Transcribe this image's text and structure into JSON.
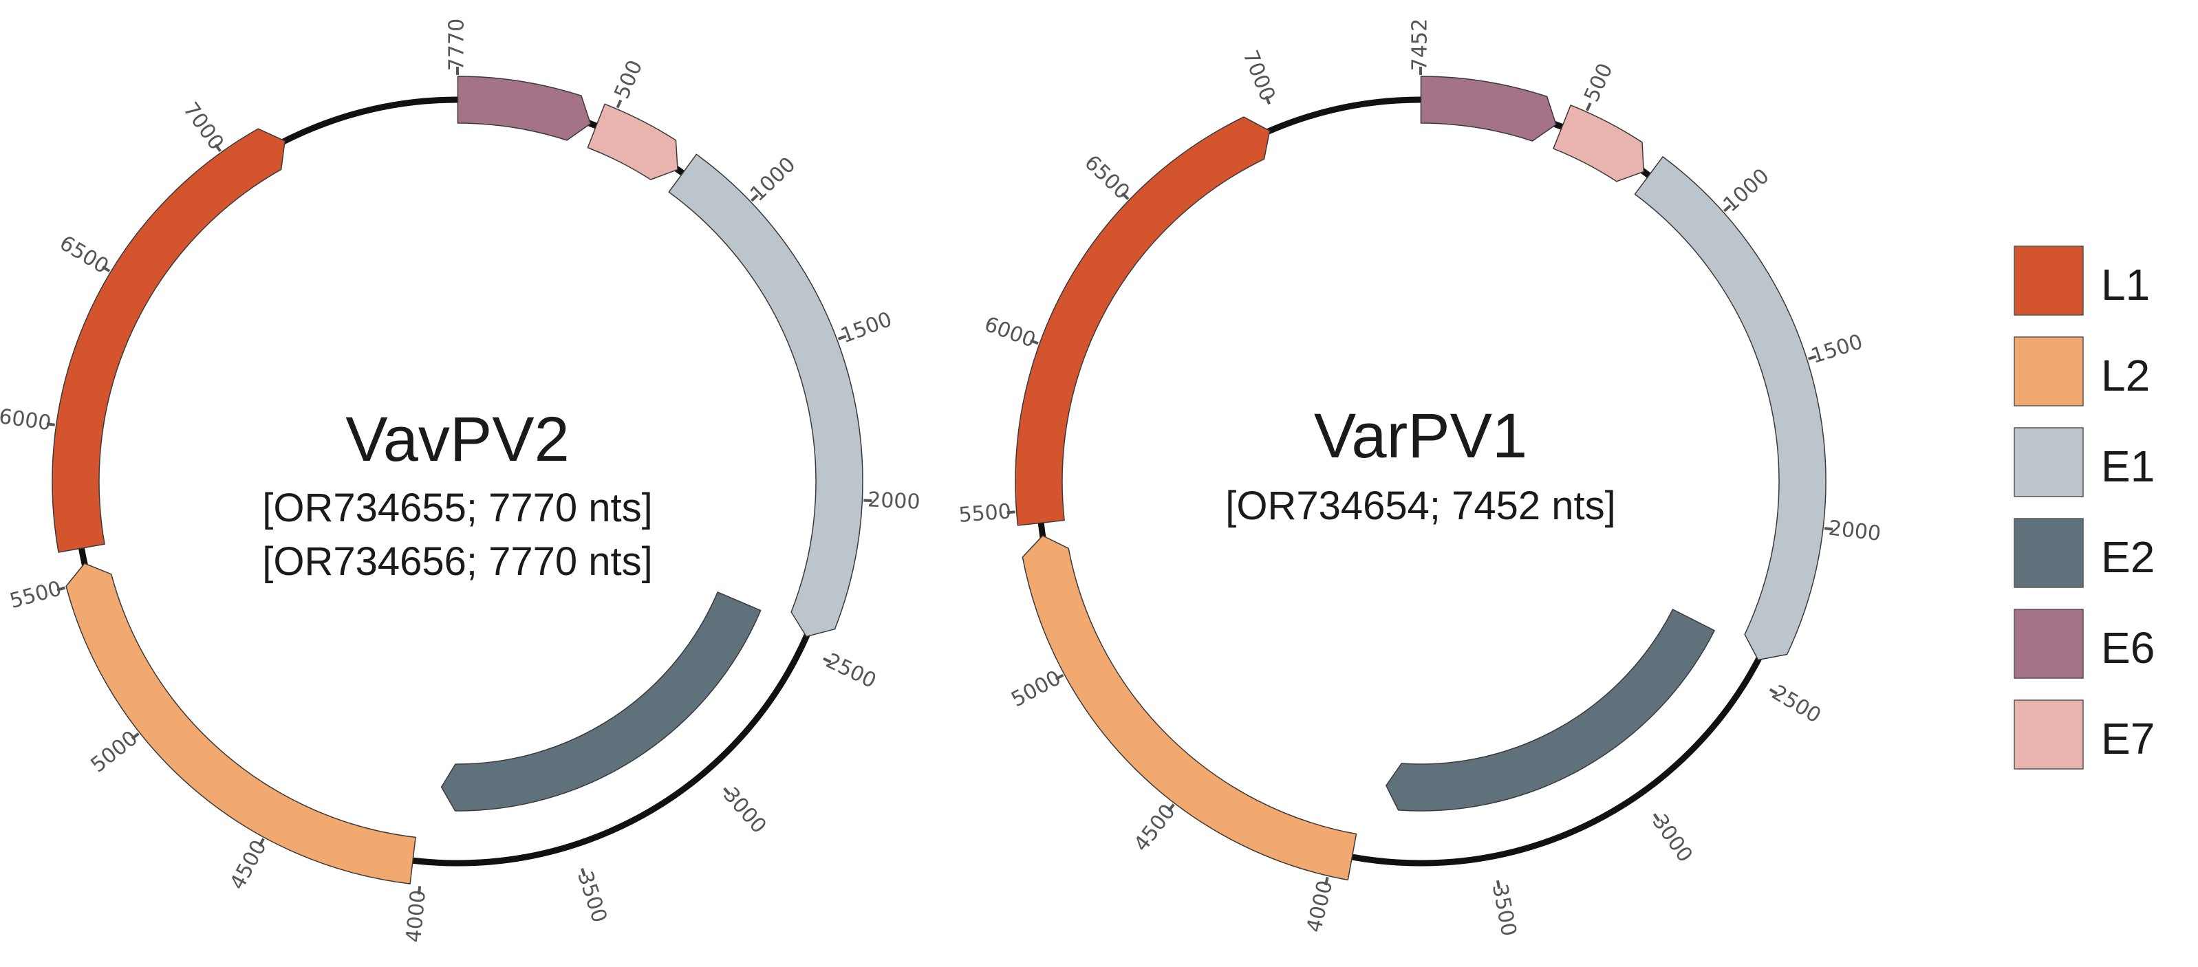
{
  "colors": {
    "L1": "#d4542e",
    "L2": "#f2a970",
    "E1": "#bcc5cb",
    "E2": "#5f717a",
    "E6": "#a47388",
    "E7": "#e8b4ad",
    "backbone": "#111111"
  },
  "maps": [
    {
      "name": "VavPV2",
      "accessions": [
        "[OR734655; 7770 nts]",
        "[OR734656; 7770 nts]"
      ],
      "genome_length": 7770,
      "genes": [
        {
          "gene": "E6",
          "start": 1,
          "end": 440,
          "strand": "forward"
        },
        {
          "gene": "E7",
          "start": 460,
          "end": 760,
          "strand": "forward"
        },
        {
          "gene": "E1",
          "start": 780,
          "end": 2460,
          "strand": "forward"
        },
        {
          "gene": "E2",
          "start": 2440,
          "end": 3950,
          "strand": "forward"
        },
        {
          "gene": "L2",
          "start": 4030,
          "end": 5560,
          "strand": "forward"
        },
        {
          "gene": "L1",
          "start": 5610,
          "end": 7190,
          "strand": "forward"
        }
      ],
      "ticks": [
        "500",
        "1000",
        "1500",
        "2000",
        "2500",
        "3000",
        "3500",
        "4000",
        "4500",
        "5000",
        "5500",
        "6000",
        "6500",
        "7000"
      ],
      "end_label": "7770"
    },
    {
      "name": "VarPV1",
      "accessions": [
        "[OR734654; 7452 nts]"
      ],
      "genome_length": 7452,
      "genes": [
        {
          "gene": "E6",
          "start": 1,
          "end": 430,
          "strand": "forward"
        },
        {
          "gene": "E7",
          "start": 450,
          "end": 740,
          "strand": "forward"
        },
        {
          "gene": "E1",
          "start": 760,
          "end": 2440,
          "strand": "forward"
        },
        {
          "gene": "E2",
          "start": 2420,
          "end": 3860,
          "strand": "forward"
        },
        {
          "gene": "L2",
          "start": 3940,
          "end": 5420,
          "strand": "forward"
        },
        {
          "gene": "L1",
          "start": 5460,
          "end": 6970,
          "strand": "forward"
        }
      ],
      "ticks": [
        "500",
        "1000",
        "1500",
        "2000",
        "2500",
        "3000",
        "3500",
        "4000",
        "4500",
        "5000",
        "5500",
        "6000",
        "6500",
        "7000"
      ],
      "end_label": "7452"
    }
  ],
  "legend": [
    {
      "gene": "L1",
      "label": "L1"
    },
    {
      "gene": "L2",
      "label": "L2"
    },
    {
      "gene": "E1",
      "label": "E1"
    },
    {
      "gene": "E2",
      "label": "E2"
    },
    {
      "gene": "E6",
      "label": "E6"
    },
    {
      "gene": "E7",
      "label": "E7"
    }
  ]
}
